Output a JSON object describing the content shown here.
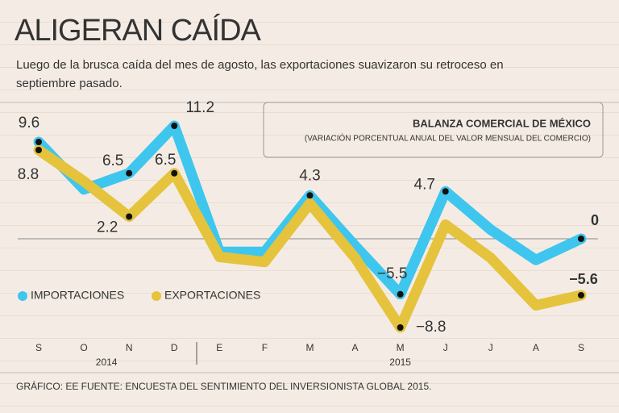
{
  "chart_data": {
    "type": "line",
    "title": "ALIGERAN CAÍDA",
    "subtitle": [
      "Luego de la brusca caída del mes de agosto, las exportaciones suavizaron su retroceso  en",
      "septiembre pasado."
    ],
    "box_title": "BALANZA COMERCIAL DE MÉXICO",
    "box_subtitle": "(VARIACIÓN PORCENTUAL ANUAL DEL VALOR MENSUAL DEL COMERCIO)",
    "categories": [
      "S",
      "O",
      "N",
      "D",
      "E",
      "F",
      "M",
      "A",
      "M",
      "J",
      "J",
      "A",
      "S"
    ],
    "years": [
      "2014",
      "2015"
    ],
    "series": [
      {
        "name": "IMPORTACIONES",
        "color": "#3ec6ee",
        "values": [
          9.6,
          4.9,
          6.5,
          11.2,
          -1.3,
          -1.3,
          4.3,
          -0.7,
          -5.5,
          4.7,
          0.9,
          -2.1,
          0
        ],
        "value_labels": [
          "9.6",
          null,
          "6.5",
          "11.2",
          null,
          null,
          "4.3",
          null,
          "−5.5",
          "4.7",
          null,
          null,
          "0"
        ]
      },
      {
        "name": "EXPORTACIONES",
        "color": "#e5c33c",
        "values": [
          8.8,
          5.7,
          2.2,
          6.5,
          -1.8,
          -2.3,
          3.5,
          -1.9,
          -8.8,
          1.4,
          -1.9,
          -6.6,
          -5.6
        ],
        "value_labels": [
          "8.8",
          null,
          "2.2",
          "6.5",
          null,
          null,
          null,
          null,
          "−8.8",
          null,
          null,
          null,
          "−5.6"
        ]
      }
    ],
    "ylim": [
      -10,
      12
    ],
    "source": "GRÁFICO: EE  FUENTE: ENCUESTA DEL SENTIMIENTO DEL INVERSIONISTA GLOBAL 2015."
  }
}
